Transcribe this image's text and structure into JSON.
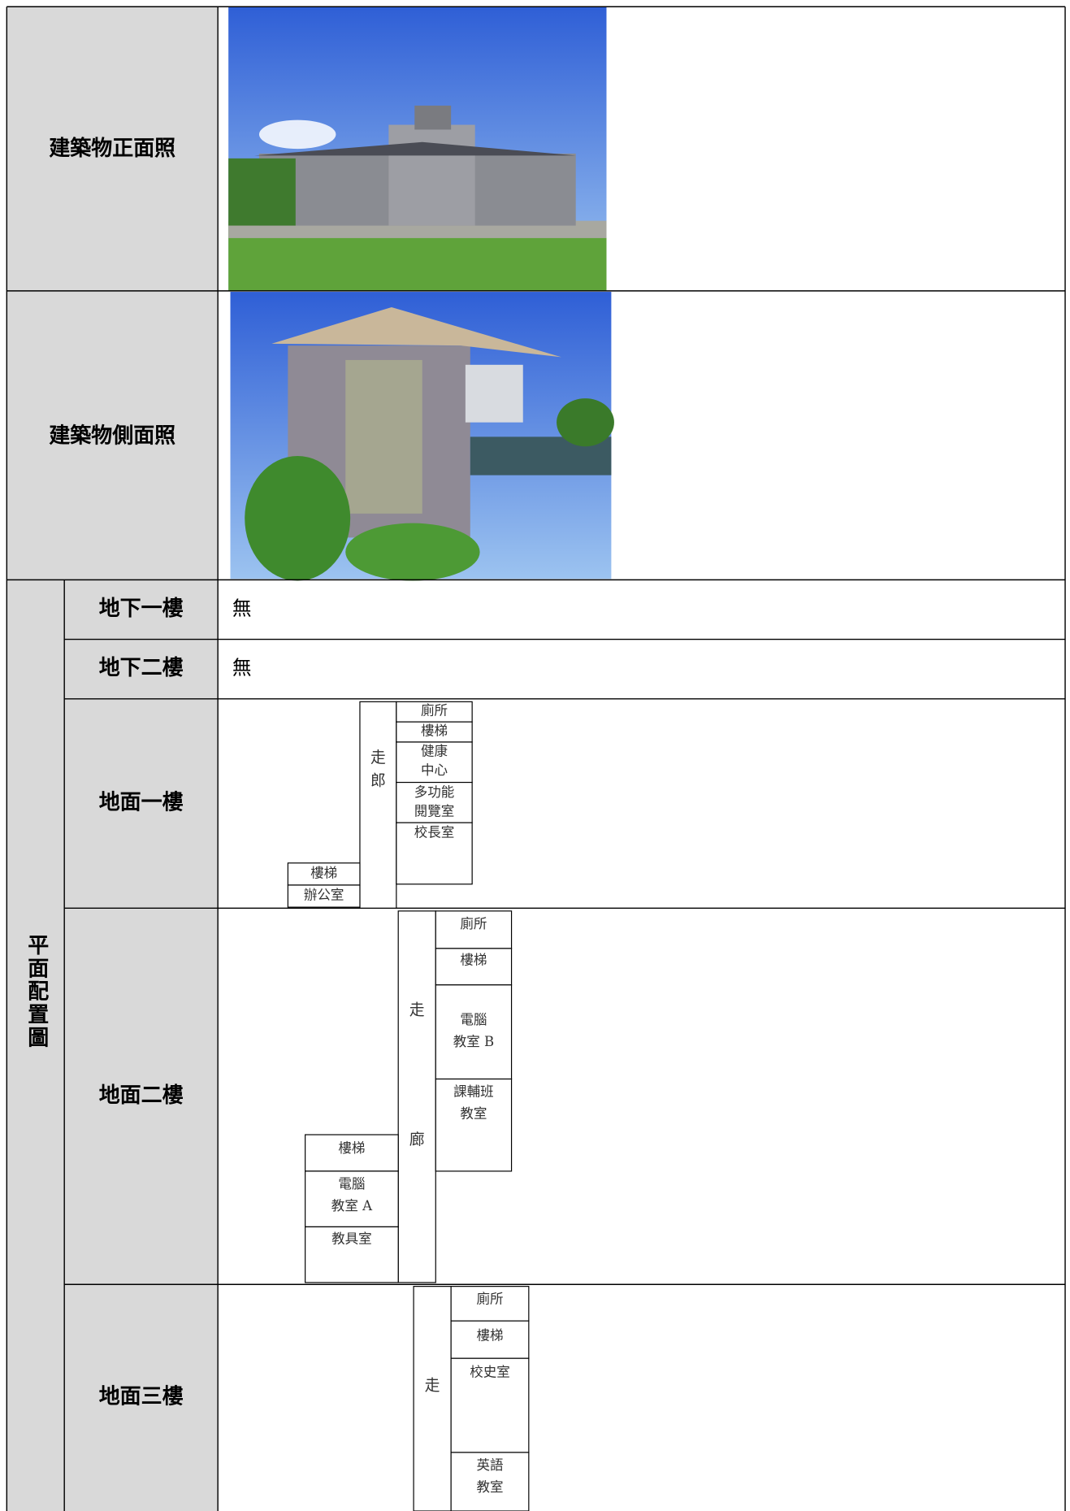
{
  "rows": [
    {
      "label": "建築物正面照"
    },
    {
      "label": "建築物側面照"
    }
  ],
  "floor_plan": {
    "label": "平面配置圖",
    "floors": [
      {
        "name": "地下一樓",
        "content": "無"
      },
      {
        "name": "地下二樓",
        "content": "無"
      },
      {
        "name": "地面一樓",
        "corridor": [
          "走",
          "郎"
        ],
        "rooms": [
          [
            "廁所"
          ],
          [
            "樓梯"
          ],
          [
            "健康",
            "中心"
          ],
          [
            "多功能",
            "閱覽室"
          ],
          [
            "校長室"
          ],
          [
            "樓梯"
          ],
          [
            "辦公室"
          ]
        ]
      },
      {
        "name": "地面二樓",
        "corridor": [
          "走",
          "廊"
        ],
        "rooms": [
          [
            "廁所"
          ],
          [
            "樓梯"
          ],
          [
            "電腦",
            "教室 B"
          ],
          [
            "課輔班",
            "教室"
          ],
          [
            "樓梯"
          ],
          [
            "電腦",
            "教室 A"
          ],
          [
            "教具室"
          ]
        ]
      },
      {
        "name": "地面三樓",
        "corridor": [
          "走"
        ],
        "rooms": [
          [
            "廁所"
          ],
          [
            "樓梯"
          ],
          [
            "校史室"
          ],
          [
            "英語",
            "教室"
          ]
        ]
      }
    ]
  }
}
